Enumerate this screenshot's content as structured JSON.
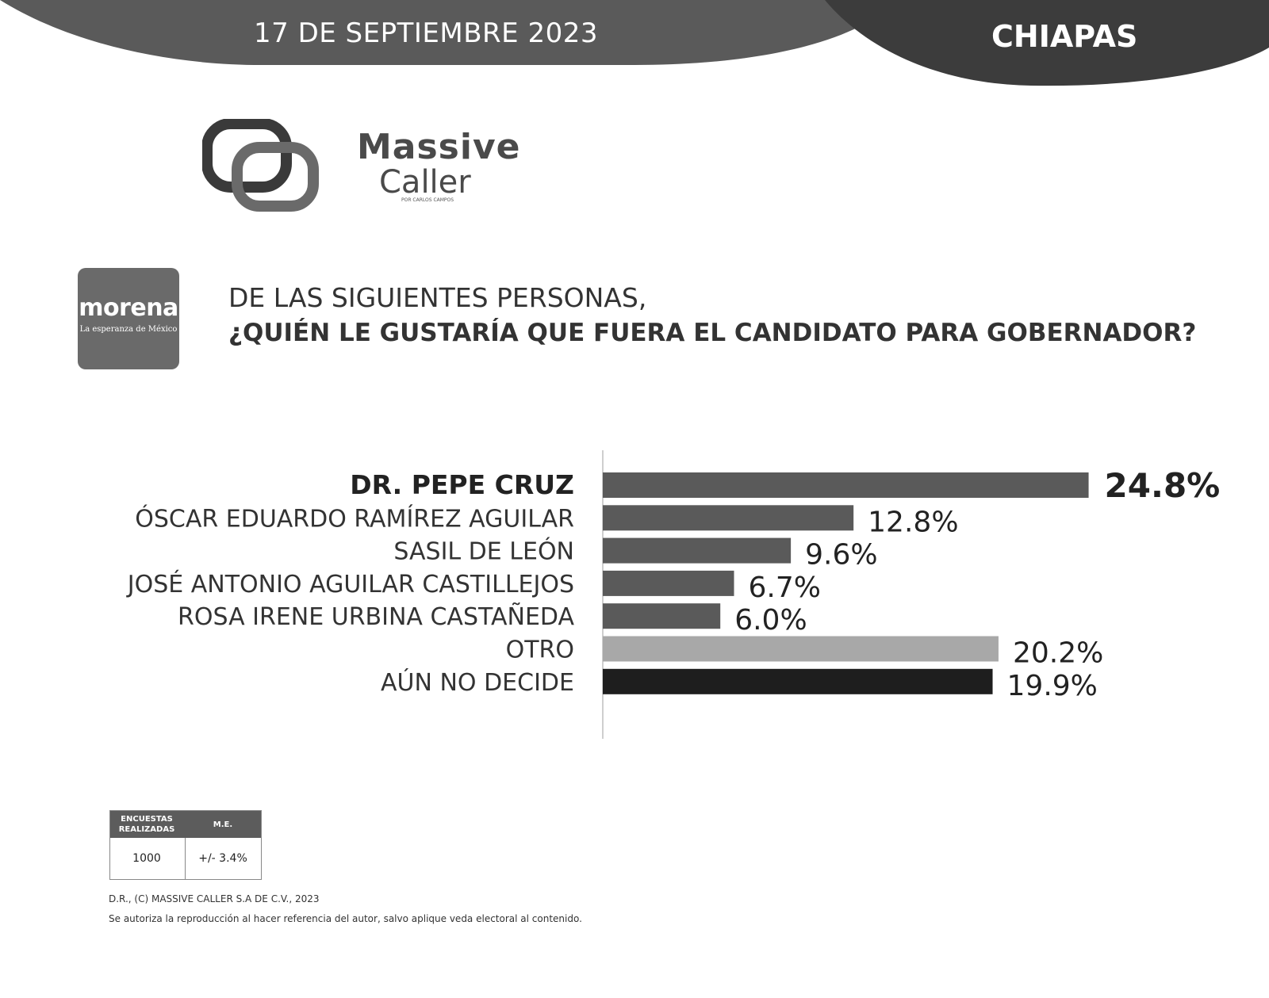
{
  "header": {
    "date": "17 DE SEPTIEMBRE 2023",
    "state": "CHIAPAS"
  },
  "brand": {
    "line1": "Massive",
    "line2": "Caller",
    "sub": "POR CARLOS CAMPOS"
  },
  "party": {
    "name": "morena",
    "tagline": "La esperanza de México"
  },
  "question": {
    "line1": "DE LAS SIGUIENTES PERSONAS,",
    "line2": "¿QUIÉN LE GUSTARÍA QUE FUERA EL CANDIDATO PARA GOBERNADOR?"
  },
  "chart_data": {
    "type": "bar",
    "orientation": "horizontal",
    "title": "¿QUIÉN LE GUSTARÍA QUE FUERA EL CANDIDATO PARA GOBERNADOR?",
    "categories": [
      "DR. PEPE CRUZ",
      "ÓSCAR EDUARDO RAMÍREZ AGUILAR",
      "SASIL DE LEÓN",
      "JOSÉ ANTONIO AGUILAR CASTILLEJOS",
      "ROSA IRENE URBINA CASTAÑEDA",
      "OTRO",
      "AÚN NO DECIDE"
    ],
    "values": [
      24.8,
      12.8,
      9.6,
      6.7,
      6.0,
      20.2,
      19.9
    ],
    "value_labels": [
      "24.8%",
      "12.8%",
      "9.6%",
      "6.7%",
      "6.0%",
      "20.2%",
      "19.9%"
    ],
    "colors": [
      "#5a5a5a",
      "#5a5a5a",
      "#5a5a5a",
      "#5a5a5a",
      "#5a5a5a",
      "#a8a8a8",
      "#1e1e1e"
    ],
    "highlight_index": 0,
    "xlim": [
      0,
      30
    ]
  },
  "methodology": {
    "col1_header": "ENCUESTAS REALIZADAS",
    "col2_header": "M.E.",
    "col1_value": "1000",
    "col2_value": "+/- 3.4%"
  },
  "footer": {
    "copyright": "D.R., (C) MASSIVE CALLER S.A DE C.V., 2023",
    "notice": "Se autoriza la reproducción al hacer referencia del autor, salvo aplique veda electoral al contenido."
  },
  "colors": {
    "header": "#555555",
    "header_dark": "#3a3a3a",
    "bar_default": "#5a5a5a",
    "bar_other": "#a8a8a8",
    "bar_undecided": "#1e1e1e"
  }
}
